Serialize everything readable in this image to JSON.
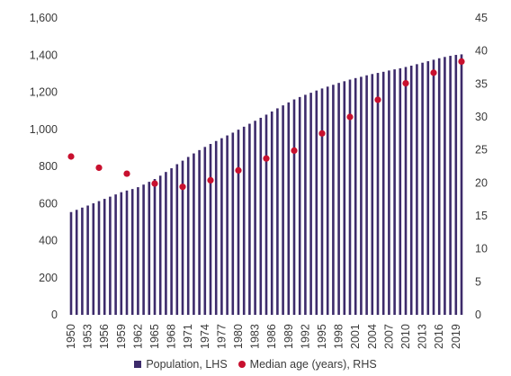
{
  "chart_data": {
    "type": "bar+scatter",
    "grid": false,
    "legend_position": "bottom-center",
    "left_axis": {
      "ylim": [
        0,
        1600
      ],
      "ticks": [
        0,
        200,
        400,
        600,
        800,
        1000,
        1200,
        1400,
        1600
      ],
      "tick_labels": [
        "0",
        "200",
        "400",
        "600",
        "800",
        "1,000",
        "1,200",
        "1,400",
        "1,600"
      ]
    },
    "right_axis": {
      "ylim": [
        0,
        45
      ],
      "ticks": [
        0,
        5,
        10,
        15,
        20,
        25,
        30,
        35,
        40,
        45
      ],
      "tick_labels": [
        "0",
        "5",
        "10",
        "15",
        "20",
        "25",
        "30",
        "35",
        "40",
        "45"
      ]
    },
    "x": [
      1950,
      1951,
      1952,
      1953,
      1954,
      1955,
      1956,
      1957,
      1958,
      1959,
      1960,
      1961,
      1962,
      1963,
      1964,
      1965,
      1966,
      1967,
      1968,
      1969,
      1970,
      1971,
      1972,
      1973,
      1974,
      1975,
      1976,
      1977,
      1978,
      1979,
      1980,
      1981,
      1982,
      1983,
      1984,
      1985,
      1986,
      1987,
      1988,
      1989,
      1990,
      1991,
      1992,
      1993,
      1994,
      1995,
      1996,
      1997,
      1998,
      1999,
      2000,
      2001,
      2002,
      2003,
      2004,
      2005,
      2006,
      2007,
      2008,
      2009,
      2010,
      2011,
      2012,
      2013,
      2014,
      2015,
      2016,
      2017,
      2018,
      2019,
      2020
    ],
    "x_tick_labels": [
      "1950",
      "1953",
      "1956",
      "1959",
      "1962",
      "1965",
      "1968",
      "1971",
      "1974",
      "1977",
      "1980",
      "1983",
      "1986",
      "1989",
      "1992",
      "1995",
      "1998",
      "2001",
      "2004",
      "2007",
      "2010",
      "2013",
      "2016",
      "2019"
    ],
    "series": [
      {
        "name": "Population, LHS",
        "kind": "bar",
        "axis": "left",
        "color": "#3d2b6b",
        "values": [
          554,
          566,
          578,
          589,
          601,
          613,
          625,
          637,
          649,
          661,
          670,
          678,
          688,
          702,
          717,
          732,
          750,
          770,
          790,
          812,
          831,
          851,
          870,
          888,
          905,
          921,
          937,
          952,
          967,
          982,
          998,
          1014,
          1030,
          1046,
          1062,
          1079,
          1096,
          1113,
          1129,
          1145,
          1161,
          1174,
          1186,
          1197,
          1209,
          1220,
          1230,
          1240,
          1250,
          1259,
          1268,
          1276,
          1283,
          1291,
          1298,
          1304,
          1310,
          1317,
          1323,
          1329,
          1336,
          1343,
          1351,
          1359,
          1367,
          1375,
          1383,
          1390,
          1396,
          1401,
          1404
        ]
      },
      {
        "name": "Median age (years), RHS",
        "kind": "scatter",
        "axis": "right",
        "color": "#c8102e",
        "x": [
          1950,
          1955,
          1960,
          1965,
          1970,
          1975,
          1980,
          1985,
          1990,
          1995,
          2000,
          2005,
          2010,
          2015,
          2020
        ],
        "values": [
          24.0,
          22.3,
          21.4,
          19.9,
          19.4,
          20.4,
          21.9,
          23.7,
          24.9,
          27.5,
          30.0,
          32.6,
          35.1,
          36.7,
          38.4
        ]
      }
    ]
  }
}
